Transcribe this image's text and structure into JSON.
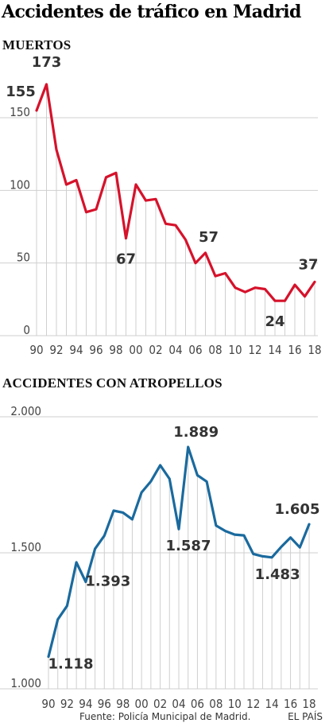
{
  "title": "Accidentes de tráfico en Madrid",
  "source": "Fuente: Policía Municipal de Madrid.",
  "brand": "EL PAÍS",
  "colors": {
    "muertos_line": "#d6122b",
    "atropellos_line": "#1a6a9e",
    "grid": "#cfcfcf"
  },
  "chart_data": [
    {
      "type": "line",
      "title": "MUERTOS",
      "x_tick_labels": [
        "90",
        "92",
        "94",
        "96",
        "98",
        "00",
        "02",
        "04",
        "06",
        "08",
        "10",
        "12",
        "14",
        "16",
        "18"
      ],
      "ylim": [
        0,
        150
      ],
      "y_ticks": [
        0,
        50,
        100,
        150
      ],
      "y_tick_labels": [
        "0",
        "50",
        "100",
        "150"
      ],
      "grid": true,
      "series": [
        {
          "x": [
            1990,
            1991,
            1992,
            1993,
            1994,
            1995,
            1996,
            1997,
            1998,
            1999,
            2000,
            2001,
            2002,
            2003,
            2004,
            2005,
            2006,
            2007,
            2008,
            2009,
            2010,
            2011,
            2012,
            2013,
            2014,
            2015,
            2016,
            2017,
            2018
          ],
          "values": [
            155,
            173,
            128,
            104,
            107,
            85,
            87,
            109,
            112,
            67,
            104,
            93,
            94,
            77,
            76,
            66,
            50,
            57,
            41,
            43,
            33,
            30,
            33,
            32,
            24,
            24,
            35,
            27,
            37
          ]
        }
      ],
      "annotations": [
        {
          "x": 1990,
          "label": "155"
        },
        {
          "x": 1991,
          "label": "173"
        },
        {
          "x": 1999,
          "label": "67"
        },
        {
          "x": 2007,
          "label": "57"
        },
        {
          "x": 2014,
          "label": "24"
        },
        {
          "x": 2018,
          "label": "37"
        }
      ]
    },
    {
      "type": "line",
      "title": "ACCIDENTES CON ATROPELLOS",
      "x_tick_labels": [
        "90",
        "92",
        "94",
        "96",
        "98",
        "00",
        "02",
        "04",
        "06",
        "08",
        "10",
        "12",
        "14",
        "16",
        "18"
      ],
      "ylim": [
        1000,
        2000
      ],
      "y_ticks": [
        1000,
        1500,
        2000
      ],
      "y_tick_labels": [
        "1.000",
        "1.500",
        "2.000"
      ],
      "grid": true,
      "series": [
        {
          "x": [
            1990,
            1991,
            1992,
            1993,
            1994,
            1995,
            1996,
            1997,
            1998,
            1999,
            2000,
            2001,
            2002,
            2003,
            2004,
            2005,
            2006,
            2007,
            2008,
            2009,
            2010,
            2011,
            2012,
            2013,
            2014,
            2015,
            2016,
            2017,
            2018
          ],
          "values": [
            1118,
            1255,
            1305,
            1465,
            1393,
            1515,
            1563,
            1655,
            1648,
            1623,
            1722,
            1763,
            1822,
            1772,
            1587,
            1889,
            1785,
            1762,
            1600,
            1580,
            1567,
            1564,
            1496,
            1487,
            1483,
            1522,
            1556,
            1520,
            1605
          ]
        }
      ],
      "annotations": [
        {
          "x": 1990,
          "label": "1.118"
        },
        {
          "x": 1994,
          "label": "1.393"
        },
        {
          "x": 2004,
          "label": "1.587"
        },
        {
          "x": 2005,
          "label": "1.889"
        },
        {
          "x": 2014,
          "label": "1.483"
        },
        {
          "x": 2018,
          "label": "1.605"
        }
      ]
    }
  ]
}
